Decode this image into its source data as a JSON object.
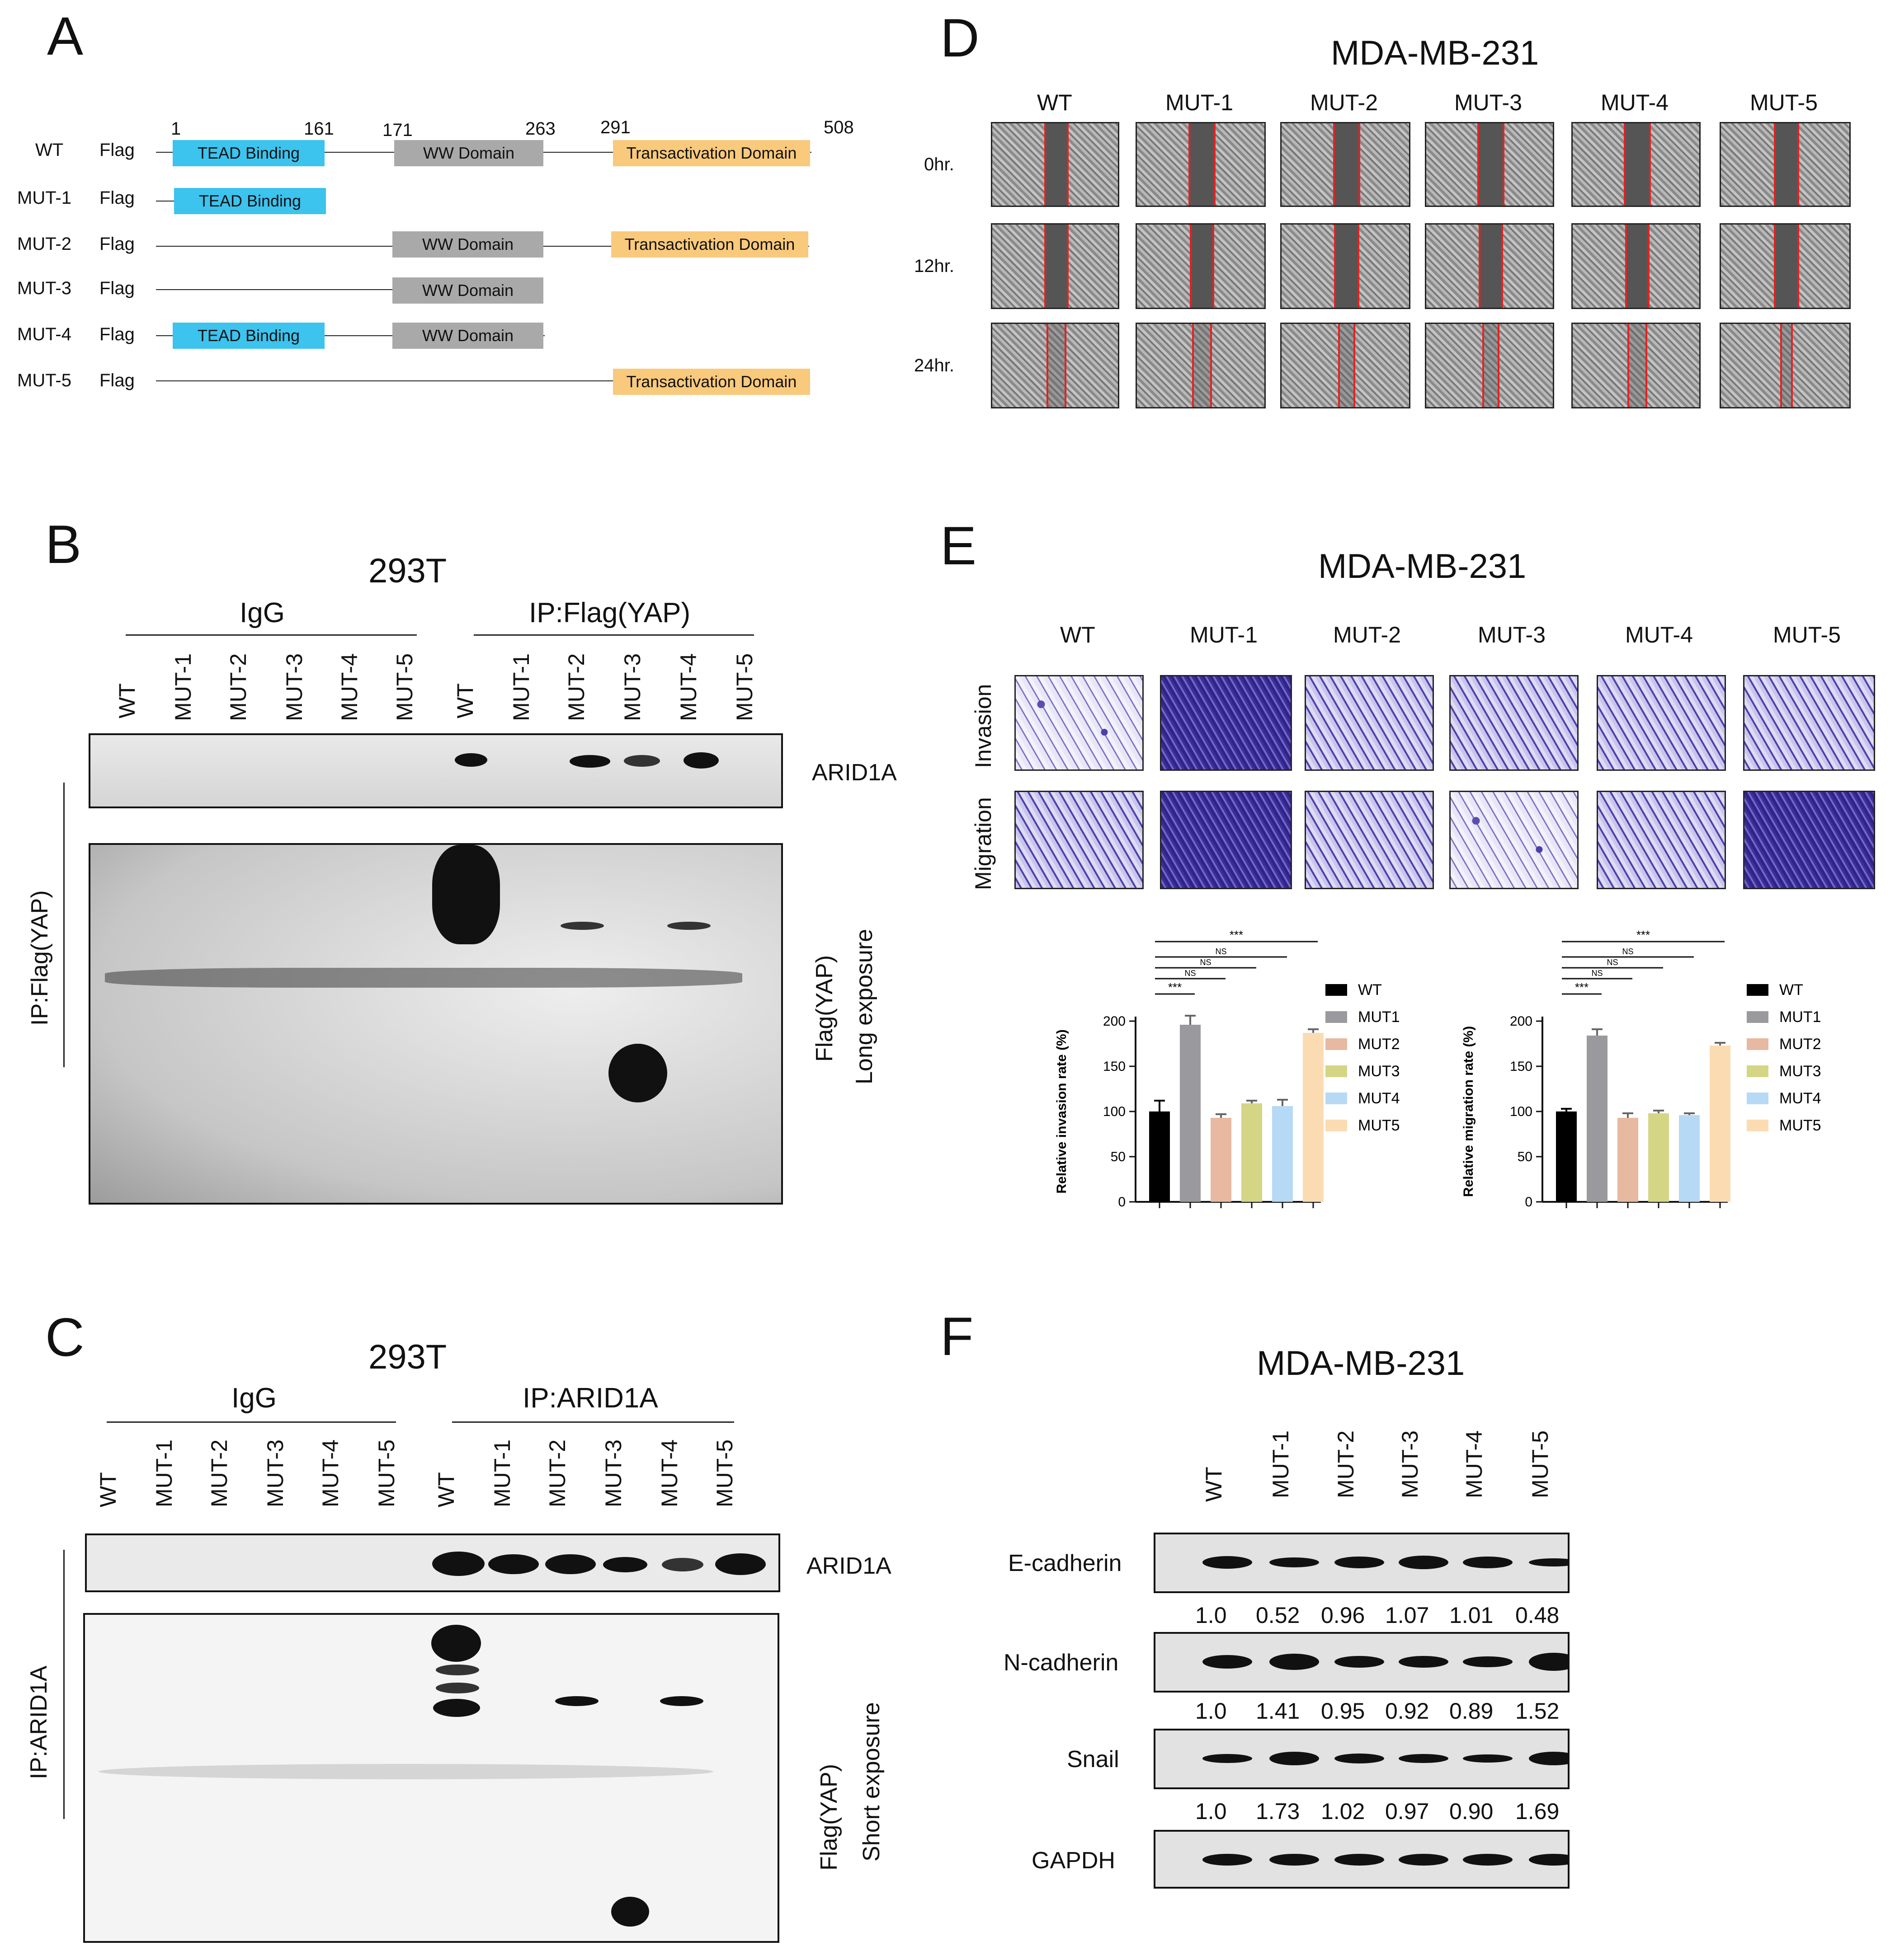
{
  "panels": {
    "A": "A",
    "B": "B",
    "C": "C",
    "D": "D",
    "E": "E",
    "F": "F"
  },
  "panelA": {
    "positions": [
      "1",
      "161",
      "171",
      "263",
      "291",
      "508"
    ],
    "tag": "Flag",
    "constructs": [
      "WT",
      "MUT-1",
      "MUT-2",
      "MUT-3",
      "MUT-4",
      "MUT-5"
    ],
    "domains": {
      "tead": "TEAD Binding",
      "ww": "WW Domain",
      "trans": "Transactivation Domain"
    }
  },
  "panelB": {
    "title": "293T",
    "groups": [
      "IgG",
      "IP:Flag(YAP)"
    ],
    "lanes": [
      "WT",
      "MUT-1",
      "MUT-2",
      "MUT-3",
      "MUT-4",
      "MUT-5",
      "WT",
      "MUT-1",
      "MUT-2",
      "MUT-3",
      "MUT-4",
      "MUT-5"
    ],
    "blot1_label": "ARID1A",
    "side_label": "IP:Flag(YAP)",
    "blot2_label1": "Flag(YAP)",
    "blot2_label2": "Long exposure"
  },
  "panelC": {
    "title": "293T",
    "groups": [
      "IgG",
      "IP:ARID1A"
    ],
    "lanes": [
      "WT",
      "MUT-1",
      "MUT-2",
      "MUT-3",
      "MUT-4",
      "MUT-5",
      "WT",
      "MUT-1",
      "MUT-2",
      "MUT-3",
      "MUT-4",
      "MUT-5"
    ],
    "blot1_label": "ARID1A",
    "side_label": "IP:ARID1A",
    "blot2_label1": "Flag(YAP)",
    "blot2_label2": "Short exposure"
  },
  "panelD": {
    "title": "MDA-MB-231",
    "columns": [
      "WT",
      "MUT-1",
      "MUT-2",
      "MUT-3",
      "MUT-4",
      "MUT-5"
    ],
    "rows": [
      "0hr.",
      "12hr.",
      "24hr."
    ]
  },
  "panelE": {
    "title": "MDA-MB-231",
    "columns": [
      "WT",
      "MUT-1",
      "MUT-2",
      "MUT-3",
      "MUT-4",
      "MUT-5"
    ],
    "rows": [
      "Invasion",
      "Migration"
    ]
  },
  "panelF": {
    "title": "MDA-MB-231",
    "lanes": [
      "WT",
      "MUT-1",
      "MUT-2",
      "MUT-3",
      "MUT-4",
      "MUT-5"
    ],
    "proteins": [
      "E-cadherin",
      "N-cadherin",
      "Snail",
      "GAPDH"
    ],
    "quant": [
      [
        "1.0",
        "0.52",
        "0.96",
        "1.07",
        "1.01",
        "0.48"
      ],
      [
        "1.0",
        "1.41",
        "0.95",
        "0.92",
        "0.89",
        "1.52"
      ],
      [
        "1.0",
        "1.73",
        "1.02",
        "0.97",
        "0.90",
        "1.69"
      ]
    ]
  },
  "chart_data": [
    {
      "type": "bar",
      "categories": [
        "WT",
        "MUT1",
        "MUT2",
        "MUT3",
        "MUT4",
        "MUT5"
      ],
      "values": [
        100,
        196,
        93,
        109,
        106,
        187
      ],
      "errors": [
        12,
        10,
        4,
        3,
        7,
        4
      ],
      "colors": [
        "#000000",
        "#9a9a9e",
        "#e6b9a0",
        "#d4d685",
        "#b6d9f5",
        "#fbdcb2"
      ],
      "title": "",
      "xlabel": "",
      "ylabel": "Relative invasion rate (%)",
      "ylim": [
        0,
        200
      ],
      "yticks": [
        "0",
        "50",
        "100",
        "150",
        "200"
      ],
      "significance": [
        "***",
        "NS",
        "NS",
        "NS",
        "***"
      ],
      "legend": [
        "WT",
        "MUT1",
        "MUT2",
        "MUT3",
        "MUT4",
        "MUT5"
      ],
      "legend_position": "right"
    },
    {
      "type": "bar",
      "categories": [
        "WT",
        "MUT1",
        "MUT2",
        "MUT3",
        "MUT4",
        "MUT5"
      ],
      "values": [
        100,
        184,
        93,
        98,
        96,
        173
      ],
      "errors": [
        3,
        7,
        5,
        3,
        2,
        3
      ],
      "colors": [
        "#000000",
        "#9a9a9e",
        "#e6b9a0",
        "#d4d685",
        "#b6d9f5",
        "#fbdcb2"
      ],
      "title": "",
      "xlabel": "",
      "ylabel": "Relative migration rate (%)",
      "ylim": [
        0,
        200
      ],
      "yticks": [
        "0",
        "50",
        "100",
        "150",
        "200"
      ],
      "significance": [
        "***",
        "NS",
        "NS",
        "NS",
        "***"
      ],
      "legend": [
        "WT",
        "MUT1",
        "MUT2",
        "MUT3",
        "MUT4",
        "MUT5"
      ],
      "legend_position": "right"
    }
  ]
}
